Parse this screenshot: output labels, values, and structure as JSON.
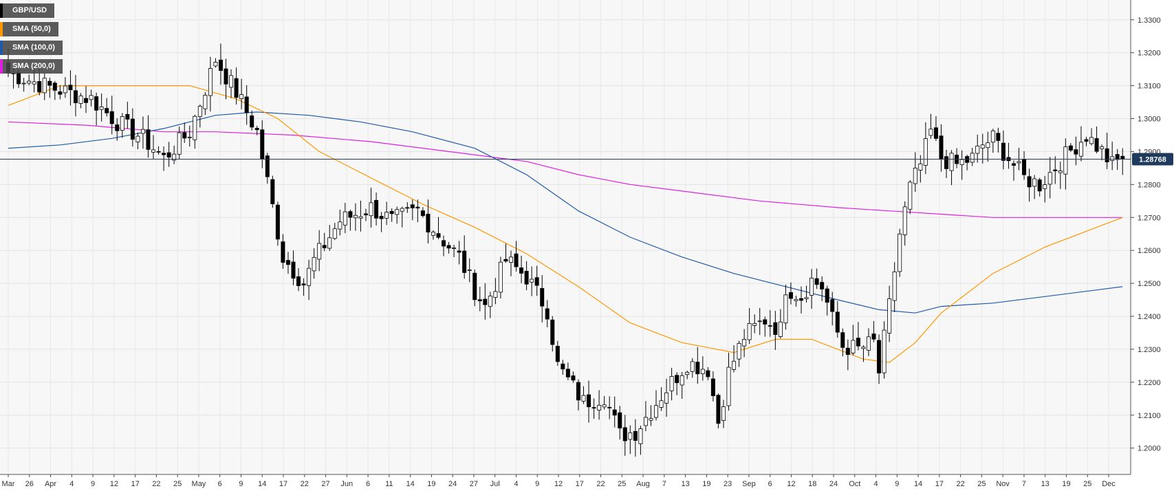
{
  "chart_data": {
    "type": "candlestick",
    "symbol": "GBP/USD",
    "timeframe": "daily",
    "y_axis": {
      "position": "right",
      "ylim": [
        1.192,
        1.336
      ],
      "ticks": [
        "1.3300",
        "1.3200",
        "1.3100",
        "1.3000",
        "1.2900",
        "1.2800",
        "1.2700",
        "1.2600",
        "1.2500",
        "1.2400",
        "1.2300",
        "1.2200",
        "1.2100",
        "1.2000"
      ]
    },
    "x_axis": {
      "ticks": [
        "Mar",
        "26",
        "Apr",
        "4",
        "9",
        "12",
        "17",
        "22",
        "25",
        "May",
        "6",
        "9",
        "14",
        "17",
        "22",
        "27",
        "Jun",
        "6",
        "11",
        "14",
        "19",
        "24",
        "27",
        "Jul",
        "4",
        "9",
        "12",
        "17",
        "22",
        "25",
        "Aug",
        "7",
        "13",
        "19",
        "23",
        "Sep",
        "6",
        "12",
        "18",
        "24",
        "Oct",
        "4",
        "9",
        "14",
        "17",
        "22",
        "25",
        "Nov",
        "7",
        "13",
        "19",
        "25",
        "Dec"
      ]
    },
    "current_price": {
      "value": 1.28768,
      "label": "1.28768"
    },
    "legend": [
      {
        "label": "GBP/USD",
        "color": "#000000"
      },
      {
        "label": "SMA (50,0)",
        "color": "#ff9800"
      },
      {
        "label": "SMA (100,0)",
        "color": "#1e5aa8"
      },
      {
        "label": "SMA (200,0)",
        "color": "#e020e0"
      }
    ],
    "candle_anchors": [
      [
        0,
        1.314
      ],
      [
        7,
        1.31
      ],
      [
        16,
        1.306
      ],
      [
        21,
        1.299
      ],
      [
        26,
        1.294
      ],
      [
        30,
        1.288
      ],
      [
        35,
        1.296
      ],
      [
        40,
        1.318
      ],
      [
        44,
        1.308
      ],
      [
        48,
        1.296
      ],
      [
        53,
        1.258
      ],
      [
        57,
        1.25
      ],
      [
        59,
        1.257
      ],
      [
        64,
        1.269
      ],
      [
        70,
        1.273
      ],
      [
        74,
        1.269
      ],
      [
        79,
        1.272
      ],
      [
        84,
        1.263
      ],
      [
        87,
        1.258
      ],
      [
        90,
        1.248
      ],
      [
        92,
        1.243
      ],
      [
        96,
        1.257
      ],
      [
        100,
        1.252
      ],
      [
        104,
        1.242
      ],
      [
        106,
        1.225
      ],
      [
        111,
        1.214
      ],
      [
        115,
        1.216
      ],
      [
        118,
        1.204
      ],
      [
        121,
        1.205
      ],
      [
        126,
        1.216
      ],
      [
        131,
        1.226
      ],
      [
        135,
        1.224
      ],
      [
        137,
        1.208
      ],
      [
        139,
        1.223
      ],
      [
        142,
        1.234
      ],
      [
        146,
        1.239
      ],
      [
        149,
        1.236
      ],
      [
        150,
        1.249
      ],
      [
        153,
        1.246
      ],
      [
        155,
        1.251
      ],
      [
        157,
        1.249
      ],
      [
        159,
        1.239
      ],
      [
        161,
        1.231
      ],
      [
        164,
        1.23
      ],
      [
        167,
        1.232
      ],
      [
        168,
        1.223
      ],
      [
        170,
        1.243
      ],
      [
        172,
        1.265
      ],
      [
        174,
        1.279
      ],
      [
        176,
        1.286
      ],
      [
        178,
        1.296
      ],
      [
        180,
        1.288
      ],
      [
        183,
        1.286
      ],
      [
        186,
        1.288
      ],
      [
        188,
        1.292
      ],
      [
        190,
        1.294
      ],
      [
        193,
        1.288
      ],
      [
        196,
        1.282
      ],
      [
        199,
        1.28
      ],
      [
        203,
        1.287
      ],
      [
        206,
        1.292
      ],
      [
        208,
        1.295
      ],
      [
        211,
        1.29
      ],
      [
        213,
        1.286
      ],
      [
        215,
        1.288
      ]
    ],
    "sma50": [
      [
        0,
        1.304
      ],
      [
        10,
        1.31
      ],
      [
        26,
        1.31
      ],
      [
        35,
        1.31
      ],
      [
        44,
        1.306
      ],
      [
        52,
        1.3
      ],
      [
        60,
        1.29
      ],
      [
        70,
        1.282
      ],
      [
        80,
        1.274
      ],
      [
        90,
        1.267
      ],
      [
        100,
        1.259
      ],
      [
        110,
        1.249
      ],
      [
        120,
        1.238
      ],
      [
        130,
        1.232
      ],
      [
        140,
        1.229
      ],
      [
        148,
        1.233
      ],
      [
        155,
        1.233
      ],
      [
        165,
        1.227
      ],
      [
        170,
        1.226
      ],
      [
        175,
        1.232
      ],
      [
        180,
        1.241
      ],
      [
        190,
        1.253
      ],
      [
        200,
        1.261
      ],
      [
        210,
        1.267
      ],
      [
        215,
        1.27
      ]
    ],
    "sma100": [
      [
        0,
        1.291
      ],
      [
        10,
        1.292
      ],
      [
        20,
        1.294
      ],
      [
        30,
        1.297
      ],
      [
        40,
        1.301
      ],
      [
        48,
        1.302
      ],
      [
        58,
        1.301
      ],
      [
        68,
        1.299
      ],
      [
        78,
        1.296
      ],
      [
        90,
        1.291
      ],
      [
        100,
        1.283
      ],
      [
        110,
        1.272
      ],
      [
        120,
        1.264
      ],
      [
        130,
        1.258
      ],
      [
        140,
        1.253
      ],
      [
        150,
        1.249
      ],
      [
        160,
        1.245
      ],
      [
        168,
        1.242
      ],
      [
        175,
        1.241
      ],
      [
        180,
        1.243
      ],
      [
        190,
        1.244
      ],
      [
        200,
        1.246
      ],
      [
        210,
        1.248
      ],
      [
        215,
        1.249
      ]
    ],
    "sma200": [
      [
        0,
        1.299
      ],
      [
        15,
        1.298
      ],
      [
        30,
        1.296
      ],
      [
        40,
        1.296
      ],
      [
        55,
        1.295
      ],
      [
        70,
        1.293
      ],
      [
        85,
        1.29
      ],
      [
        100,
        1.287
      ],
      [
        110,
        1.283
      ],
      [
        120,
        1.28
      ],
      [
        130,
        1.278
      ],
      [
        145,
        1.275
      ],
      [
        160,
        1.273
      ],
      [
        170,
        1.272
      ],
      [
        180,
        1.271
      ],
      [
        190,
        1.27
      ],
      [
        200,
        1.27
      ],
      [
        215,
        1.27
      ]
    ]
  }
}
